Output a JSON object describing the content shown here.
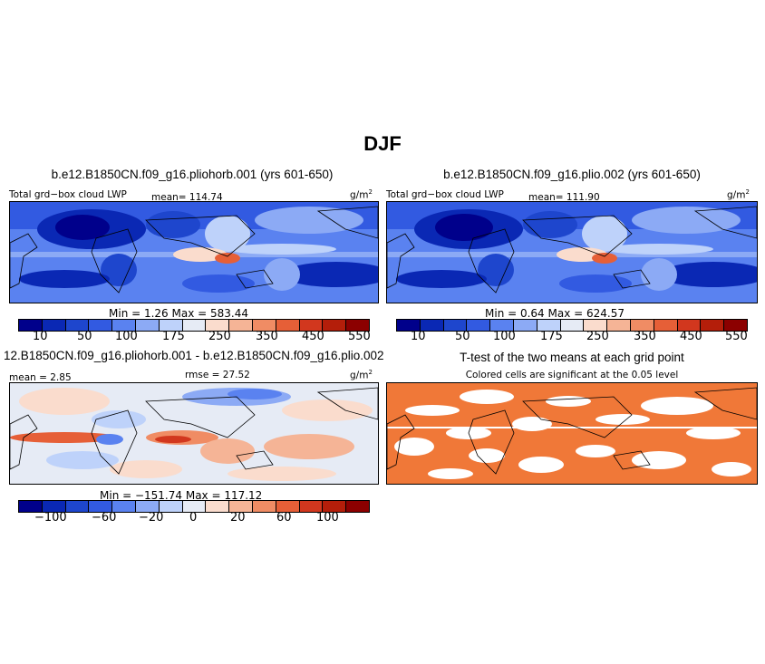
{
  "figure_title": "DJF",
  "panels": {
    "top_left": {
      "title": "b.e12.B1850CN.f09_g16.pliohorb.001 (yrs 601-650)",
      "variable": "Total grd−box cloud LWP",
      "mean_text": "mean= 114.74",
      "units": "g/m",
      "units_sup": "2",
      "minmax_text": "Min =    1.26  Max = 583.44",
      "colorbar_ticks": [
        "10",
        "50",
        "100",
        "175",
        "250",
        "350",
        "450",
        "550"
      ]
    },
    "top_right": {
      "title": "b.e12.B1850CN.f09_g16.plio.002 (yrs 601-650)",
      "variable": "Total grd−box cloud LWP",
      "mean_text": "mean= 111.90",
      "units": "g/m",
      "units_sup": "2",
      "minmax_text": "Min =    0.64  Max = 624.57",
      "colorbar_ticks": [
        "10",
        "50",
        "100",
        "175",
        "250",
        "350",
        "450",
        "550"
      ]
    },
    "bottom_left": {
      "title": "12.B1850CN.f09_g16.pliohorb.001 - b.e12.B1850CN.f09_g16.plio.002",
      "mean_text": "mean =   2.85",
      "rmse_text": "rmse =   27.52",
      "units": "g/m",
      "units_sup": "2",
      "minmax_text": "Min = −151.74  Max = 117.12",
      "colorbar_ticks": [
        "−100",
        "−60",
        "−20",
        "0",
        "20",
        "60",
        "100"
      ]
    },
    "bottom_right": {
      "title": "T-test of the two means at each grid point",
      "subtitle": "Colored cells are significant at the 0.05 level"
    }
  },
  "colors": {
    "abs_scale": [
      "#00008b",
      "#0a28b4",
      "#1e46cd",
      "#325ae1",
      "#5a82f0",
      "#8caaf5",
      "#bed2fa",
      "#e6ebf5",
      "#fadccd",
      "#f5b496",
      "#f08c64",
      "#e65f37",
      "#d2371e",
      "#b41e0a",
      "#8c0000"
    ],
    "diff_scale": [
      "#00008b",
      "#0a28b4",
      "#1e46cd",
      "#325ae1",
      "#5a82f0",
      "#8caaf5",
      "#bed2fa",
      "#e6ebf5",
      "#fadccd",
      "#f5b496",
      "#f08c64",
      "#e65f37",
      "#d2371e",
      "#b41e0a",
      "#8c0000"
    ],
    "significance": "#f07838"
  }
}
